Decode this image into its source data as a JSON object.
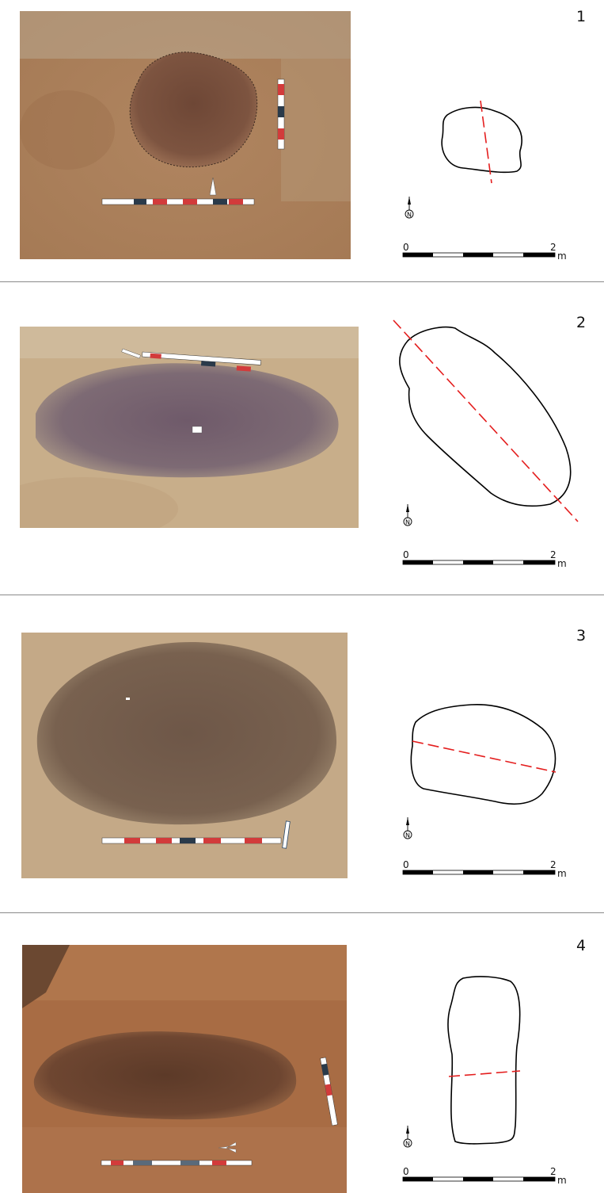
{
  "figures": [
    {
      "number": "1",
      "photo": "excavated pit feature, brown fill with scratched outline, north arrow and two ranging rods",
      "plan": "plan outline with section line"
    },
    {
      "number": "2",
      "photo": "excavated pit feature, dark purple-brown fill, ranging rods",
      "plan": "plan outline with section line"
    },
    {
      "number": "3",
      "photo": "excavated pit feature, large dark oval fill, ranging rods",
      "plan": "plan outline with section line"
    },
    {
      "number": "4",
      "photo": "excavated pit feature, dark fill in reddish soil, north arrow and ranging rods",
      "plan": "plan outline with section line"
    }
  ],
  "scale_bar": {
    "start": "0",
    "end": "2",
    "unit": "m"
  },
  "north_label": "N",
  "colors": {
    "outline": "#000000",
    "section_line": "#e41e1e",
    "separator": "#8a8a8a"
  }
}
